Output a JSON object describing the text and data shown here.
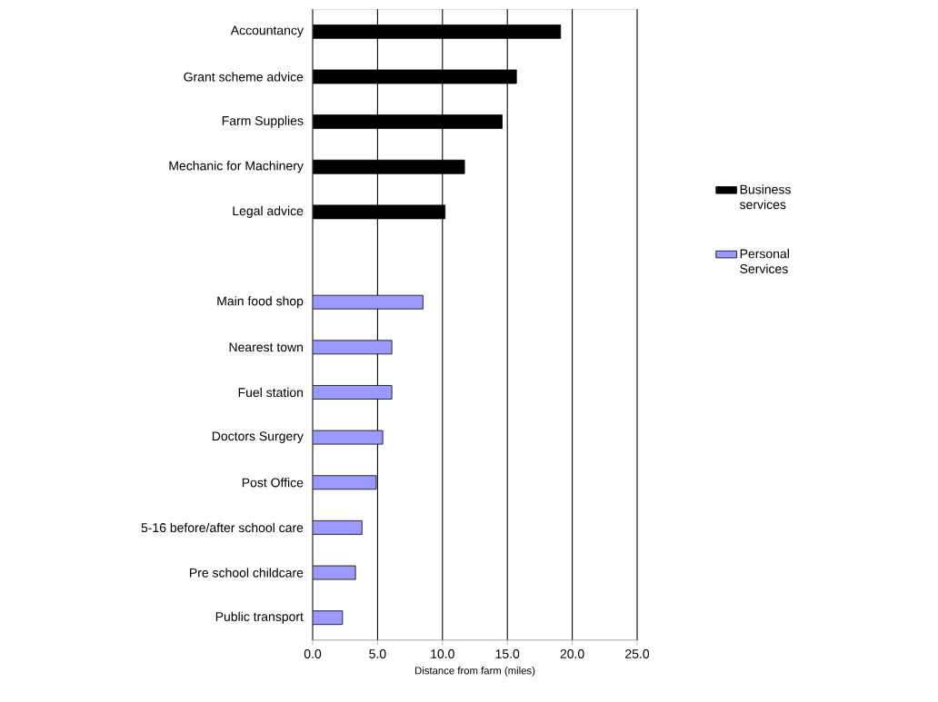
{
  "chart_data": {
    "type": "bar",
    "orientation": "horizontal",
    "xlabel": "Distance from farm (miles)",
    "categories": [
      "Accountancy",
      "Grant scheme advice",
      "Farm Supplies",
      "Mechanic for Machinery",
      "Legal advice",
      null,
      "Main food shop",
      "Nearest town",
      "Fuel station",
      "Doctors Surgery",
      "Post Office",
      "5-16 before/after school care",
      "Pre school childcare",
      "Public transport"
    ],
    "series": [
      {
        "name": "Business services",
        "color": "#000000",
        "values": [
          19.1,
          15.7,
          14.6,
          11.7,
          10.2,
          null,
          null,
          null,
          null,
          null,
          null,
          null,
          null,
          null
        ]
      },
      {
        "name": "Personal Services",
        "color": "#9999ff",
        "values": [
          null,
          null,
          null,
          null,
          null,
          null,
          8.5,
          6.1,
          6.1,
          5.4,
          4.9,
          3.8,
          3.3,
          2.3
        ]
      }
    ],
    "xlim": [
      0,
      25
    ],
    "xticks": [
      {
        "value": 0,
        "label": "0.0"
      },
      {
        "value": 5,
        "label": "5.0"
      },
      {
        "value": 10,
        "label": "10.0"
      },
      {
        "value": 15,
        "label": "15.0"
      },
      {
        "value": 20,
        "label": "20.0"
      },
      {
        "value": 25,
        "label": "25.0"
      }
    ],
    "grid": "x",
    "legend": "right"
  }
}
